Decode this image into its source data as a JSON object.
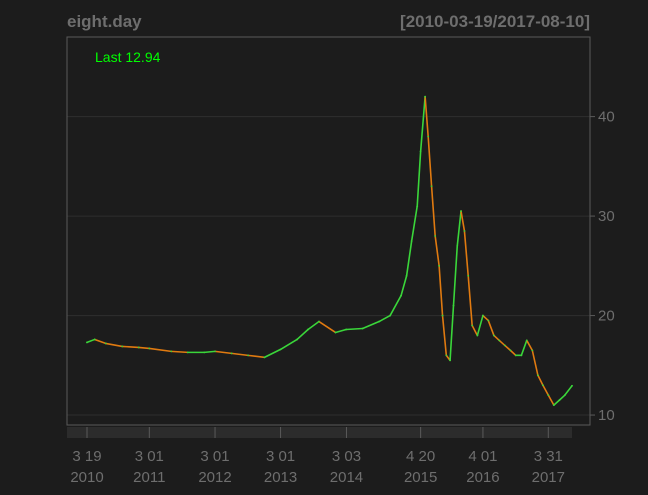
{
  "chart_title": "eight.day",
  "date_range": "[2010-03-19/2017-08-10]",
  "last_label": "Last 12.94",
  "colors": {
    "background": "#1c1c1c",
    "text": "#6e6e6e",
    "frame": "#5a5a5a",
    "grid": "#2e2e2e",
    "axis_band": "#2c2c2c",
    "last_label": "#00ff00",
    "up": "#3ad63a",
    "down": "#e07a10"
  },
  "chart_data": {
    "type": "line",
    "title": "eight.day",
    "subtitle": "[2010-03-19/2017-08-10]",
    "ylim": [
      9,
      48
    ],
    "y_ticks": [
      10,
      20,
      30,
      40
    ],
    "x_ticks": [
      {
        "date": "2010-03-19",
        "day": "3 19",
        "year": "2010"
      },
      {
        "date": "2011-03-01",
        "day": "3 01",
        "year": "2011"
      },
      {
        "date": "2012-03-01",
        "day": "3 01",
        "year": "2012"
      },
      {
        "date": "2013-03-01",
        "day": "3 01",
        "year": "2013"
      },
      {
        "date": "2014-03-03",
        "day": "3 03",
        "year": "2014"
      },
      {
        "date": "2015-04-20",
        "day": "4 20",
        "year": "2015"
      },
      {
        "date": "2016-04-01",
        "day": "4 01",
        "year": "2016"
      },
      {
        "date": "2017-03-31",
        "day": "3 31",
        "year": "2017"
      }
    ],
    "grid": true,
    "y_axis_side": "right",
    "series": [
      {
        "x": [
          "2010-03-19",
          "2010-05-01",
          "2010-07-01",
          "2010-10-01",
          "2011-01-01",
          "2011-03-01",
          "2011-07-01",
          "2011-10-01",
          "2012-01-01",
          "2012-03-01",
          "2012-06-01",
          "2012-09-01",
          "2012-12-01",
          "2013-03-01",
          "2013-06-01",
          "2013-08-01",
          "2013-10-01",
          "2014-01-01",
          "2014-03-01",
          "2014-06-01",
          "2014-09-01",
          "2014-11-01",
          "2015-01-01",
          "2015-02-01",
          "2015-03-01",
          "2015-04-01",
          "2015-04-20",
          "2015-05-15",
          "2015-06-01",
          "2015-06-20",
          "2015-07-10",
          "2015-08-01",
          "2015-08-20",
          "2015-09-10",
          "2015-10-01",
          "2015-10-20",
          "2015-11-10",
          "2015-12-01",
          "2015-12-20",
          "2016-01-10",
          "2016-02-01",
          "2016-03-01",
          "2016-04-01",
          "2016-05-01",
          "2016-06-01",
          "2016-07-01",
          "2016-08-01",
          "2016-09-01",
          "2016-10-01",
          "2016-11-01",
          "2016-12-01",
          "2017-01-01",
          "2017-02-01",
          "2017-03-01",
          "2017-03-31",
          "2017-05-01",
          "2017-06-01",
          "2017-07-01",
          "2017-08-10"
        ],
        "values": [
          17.3,
          17.6,
          17.2,
          16.9,
          16.8,
          16.7,
          16.4,
          16.3,
          16.3,
          16.4,
          16.2,
          16.0,
          15.8,
          16.6,
          17.6,
          18.6,
          19.4,
          18.3,
          18.6,
          18.7,
          19.4,
          20.0,
          22.0,
          24.0,
          27.5,
          31.0,
          36.5,
          42.0,
          38.0,
          33.0,
          28.0,
          25.0,
          20.0,
          16.0,
          15.5,
          21.0,
          27.0,
          30.5,
          28.5,
          24.0,
          19.0,
          18.0,
          20.0,
          19.5,
          18.0,
          17.5,
          17.0,
          16.5,
          16.0,
          16.0,
          17.5,
          16.5,
          14.0,
          13.0,
          12.0,
          11.0,
          11.5,
          12.0,
          12.94
        ]
      }
    ]
  }
}
